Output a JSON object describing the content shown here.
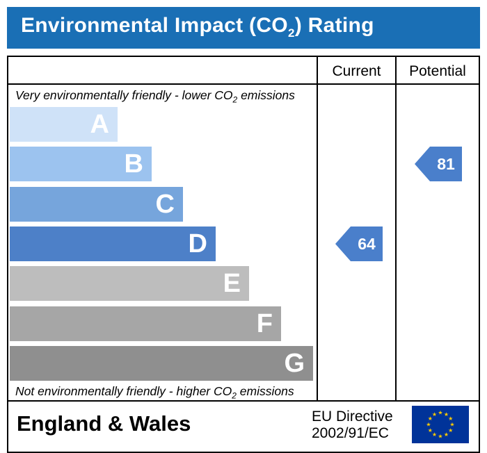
{
  "header": {
    "title_prefix": "Environmental Impact (CO",
    "title_sub": "2",
    "title_suffix": ") Rating"
  },
  "columns": {
    "current": "Current",
    "potential": "Potential"
  },
  "captions": {
    "top_prefix": "Very environmentally friendly - lower CO",
    "top_sub": "2",
    "top_suffix": " emissions",
    "bottom_prefix": "Not environmentally friendly - higher CO",
    "bottom_sub": "2",
    "bottom_suffix": " emissions"
  },
  "footer": {
    "region": "England & Wales",
    "directive_line1": "EU Directive",
    "directive_line2": "2002/91/EC"
  },
  "colors": {
    "title_bar": "#1a6fb5",
    "arrow": "#4a7fcb",
    "flag_blue": "#003399",
    "flag_star": "#ffcc00"
  },
  "chart_data": {
    "type": "bar",
    "categories": [
      "A",
      "B",
      "C",
      "D",
      "E",
      "F",
      "G"
    ],
    "band_colors": [
      "#cfe2f8",
      "#9cc3ef",
      "#76a5dc",
      "#4d80c8",
      "#bdbdbd",
      "#a6a6a6",
      "#8f8f8f"
    ],
    "current": {
      "label": "Current",
      "value": 64,
      "band": "D"
    },
    "potential": {
      "label": "Potential",
      "value": 81,
      "band": "B"
    }
  }
}
